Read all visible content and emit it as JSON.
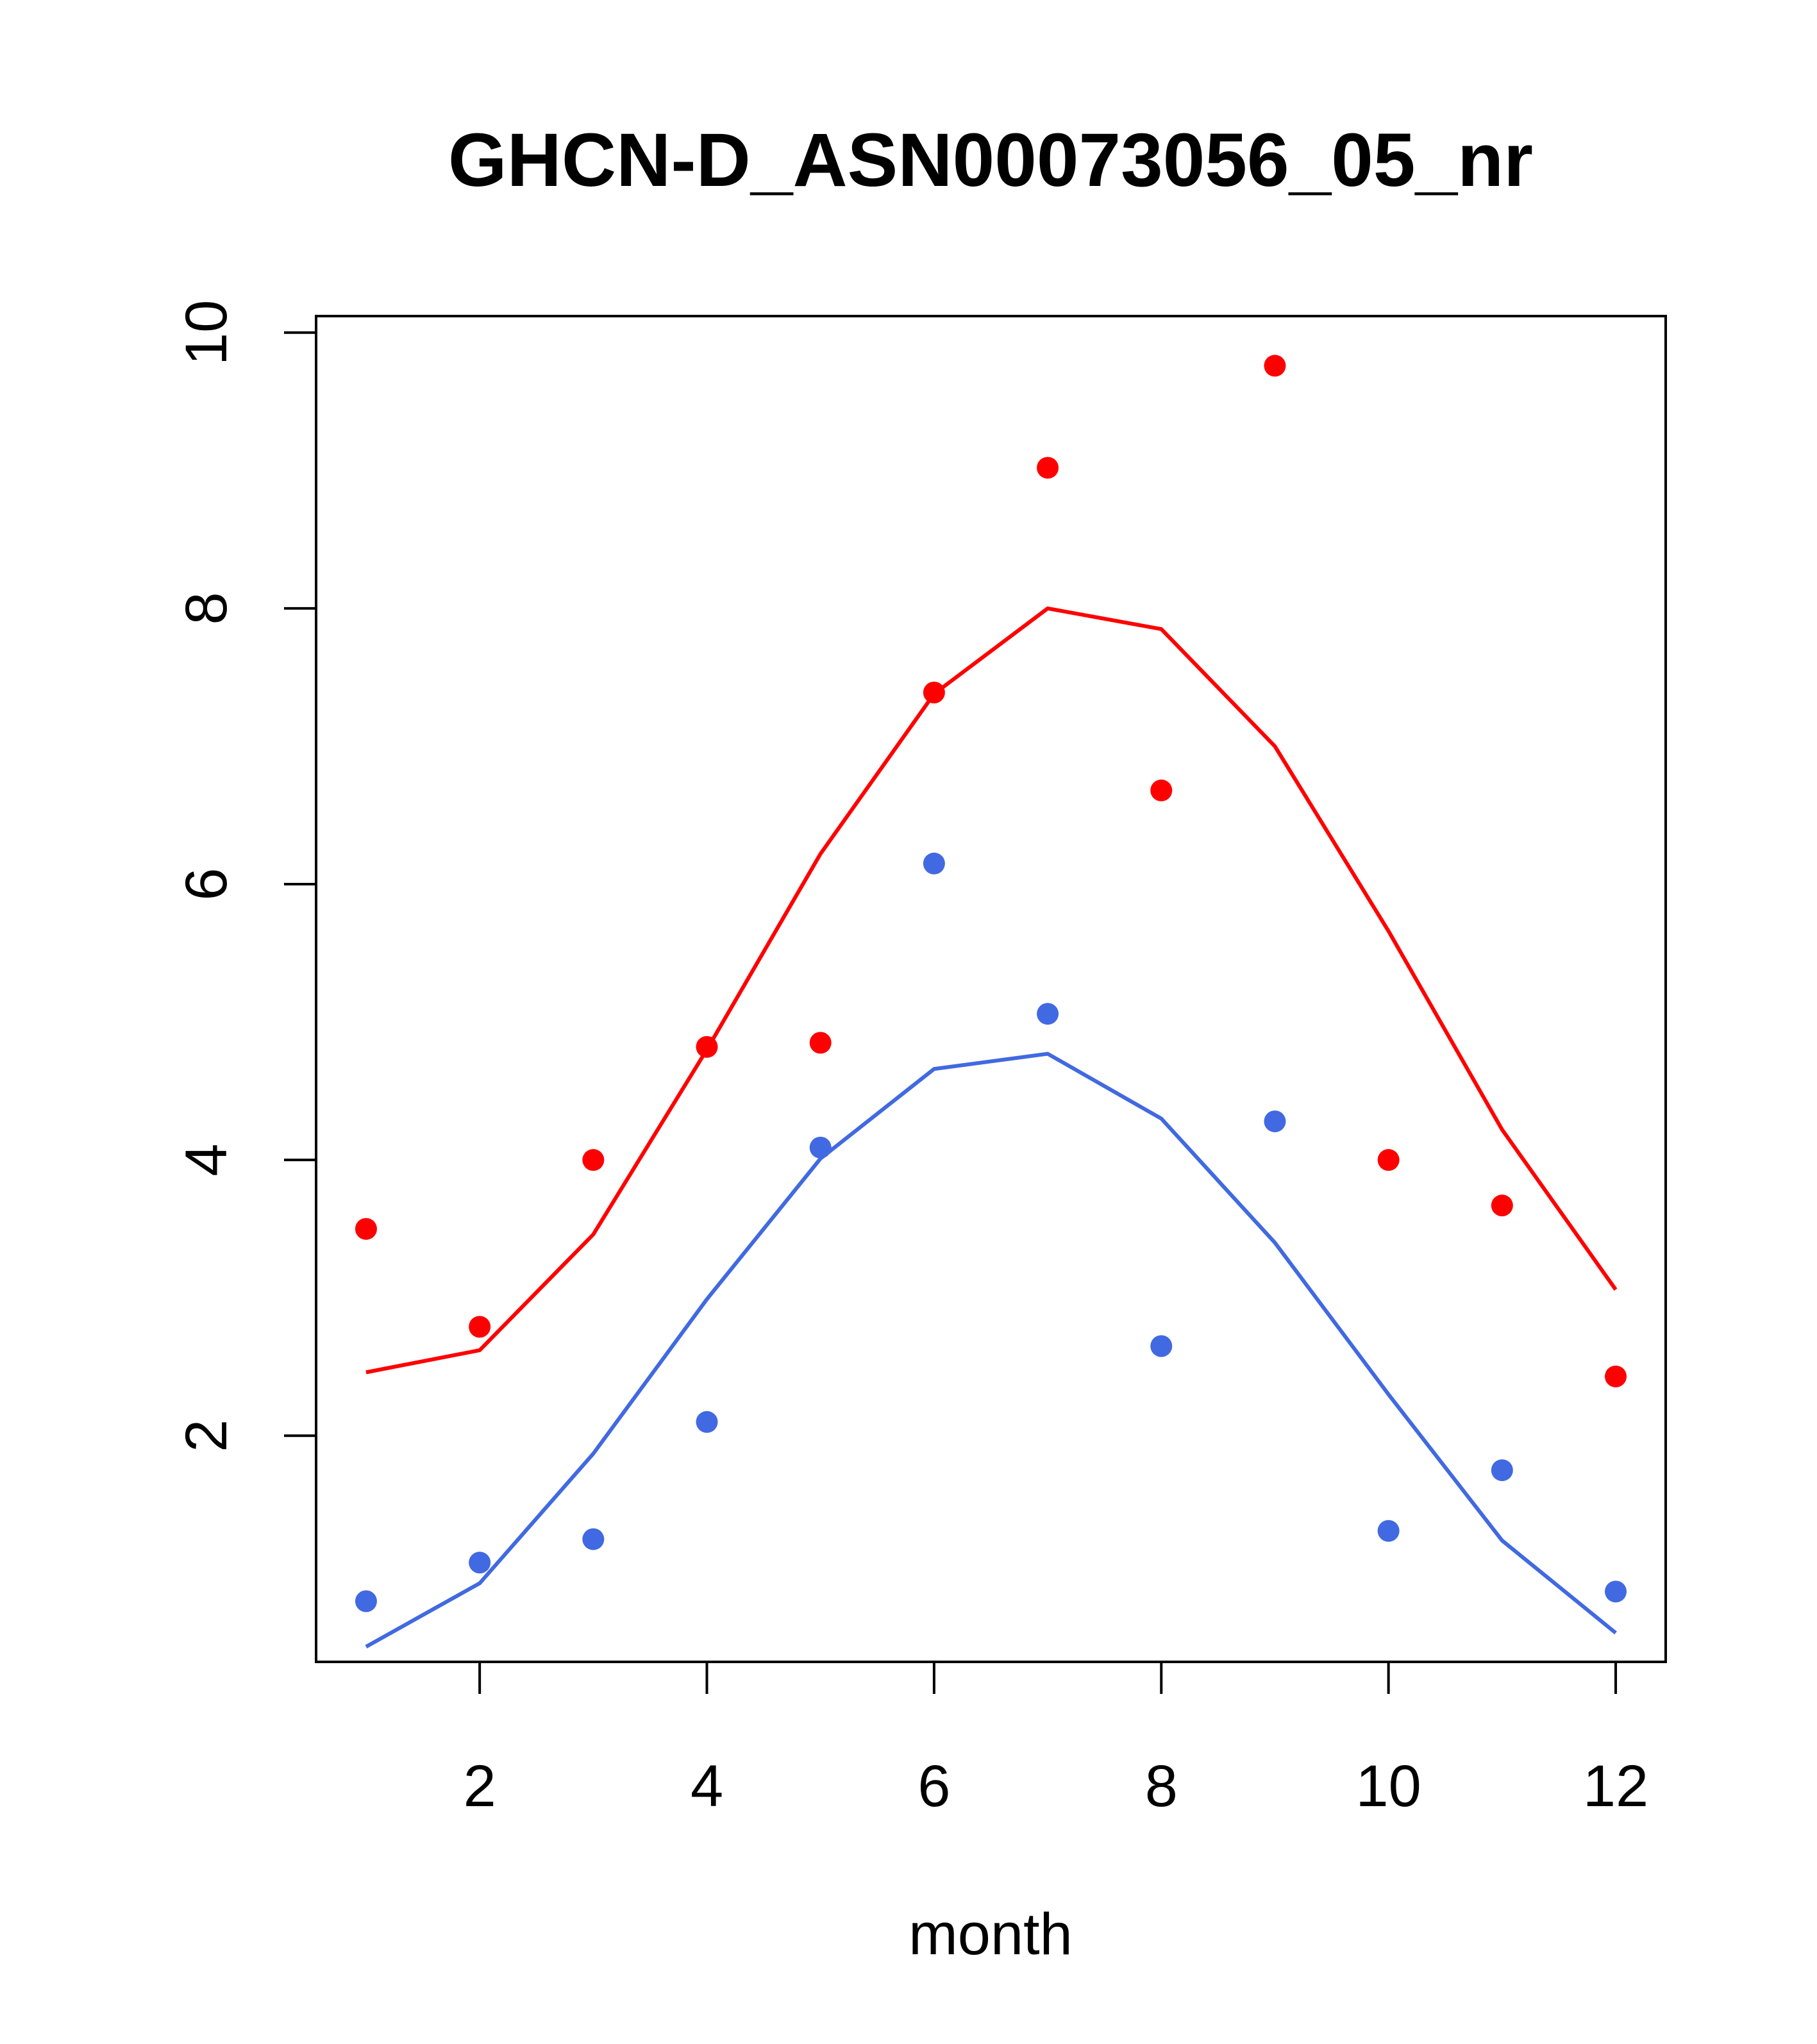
{
  "chart_data": {
    "type": "line",
    "title": "GHCN-D_ASN00073056_05_nr",
    "xlabel": "month",
    "ylabel": "",
    "xlim": [
      0.56,
      12.44
    ],
    "ylim": [
      0.36,
      10.12
    ],
    "xticks": [
      2,
      4,
      6,
      8,
      10,
      12
    ],
    "yticks": [
      2,
      4,
      6,
      8,
      10
    ],
    "x": [
      1,
      2,
      3,
      4,
      5,
      6,
      7,
      8,
      9,
      10,
      11,
      12
    ],
    "series": [
      {
        "color": "#ff0000",
        "line": [
          2.46,
          2.62,
          3.46,
          4.8,
          6.22,
          7.38,
          8.0,
          7.85,
          7.0,
          5.66,
          4.22,
          3.06
        ],
        "points": [
          3.5,
          2.79,
          4.0,
          4.82,
          4.85,
          7.39,
          9.02,
          6.68,
          9.76,
          4.0,
          3.67,
          2.43
        ]
      },
      {
        "color": "#4169e1",
        "line": [
          0.47,
          0.93,
          1.87,
          2.99,
          4.01,
          4.66,
          4.77,
          4.3,
          3.4,
          2.3,
          1.24,
          0.57
        ],
        "points": [
          0.8,
          1.08,
          1.25,
          2.1,
          4.09,
          6.15,
          5.06,
          2.65,
          4.28,
          1.31,
          1.75,
          0.87
        ]
      }
    ]
  }
}
